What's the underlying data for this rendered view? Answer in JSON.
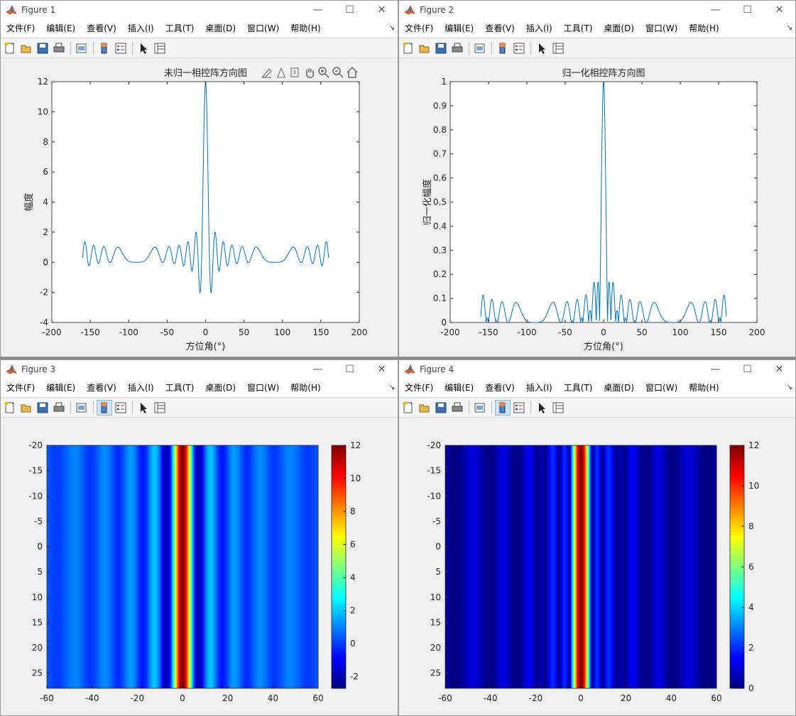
{
  "menu": [
    "文件(F)",
    "编辑(E)",
    "查看(V)",
    "插入(I)",
    "工具(T)",
    "桌面(D)",
    "窗口(W)",
    "帮助(H)"
  ],
  "menu_overflow": "↘",
  "window_controls": {
    "minimize": "—",
    "maximize": "☐",
    "close": "✕"
  },
  "toolbar_icons": [
    "new-figure-icon",
    "open-file-icon",
    "save-icon",
    "print-icon",
    "print-preview-icon",
    "colorbar-icon",
    "legend-icon",
    "pointer-icon",
    "property-inspector-icon"
  ],
  "axes_toolbar_icons": [
    "brush-icon",
    "data-tips-icon",
    "export-icon",
    "pan-icon",
    "zoom-in-icon",
    "zoom-out-icon",
    "home-icon"
  ],
  "colors": {
    "line": "#0072BD",
    "window_bg": "#f0f0f0",
    "axes_bg": "#ffffff"
  },
  "figures": [
    {
      "title": "Figure 1"
    },
    {
      "title": "Figure 2"
    },
    {
      "title": "Figure 3"
    },
    {
      "title": "Figure 4"
    }
  ],
  "chart_data": [
    {
      "type": "line",
      "title": "未归一相控阵方向图",
      "xlabel": "方位角(°)",
      "ylabel": "幅度",
      "xlim": [
        -200,
        200
      ],
      "ylim": [
        -4,
        12
      ],
      "xticks": [
        "-200",
        "-150",
        "-100",
        "-50",
        "0",
        "50",
        "100",
        "150",
        "200"
      ],
      "yticks": [
        "-4",
        "-2",
        "0",
        "2",
        "4",
        "6",
        "8",
        "10",
        "12"
      ],
      "x_range": [
        -160,
        160
      ],
      "series": [
        {
          "values_desc": "array factor sum over 12 elements, peak 12 at 0°"
        }
      ],
      "n_elements": 12,
      "grid": false
    },
    {
      "type": "line",
      "title": "归一化相控阵方向图",
      "xlabel": "方位角(°)",
      "ylabel": "归一化幅度",
      "xlim": [
        -200,
        200
      ],
      "ylim": [
        0,
        1
      ],
      "xticks": [
        "-200",
        "-150",
        "-100",
        "-50",
        "0",
        "50",
        "100",
        "150",
        "200"
      ],
      "yticks": [
        "0",
        "0.1",
        "0.2",
        "0.3",
        "0.4",
        "0.5",
        "0.6",
        "0.7",
        "0.8",
        "0.9",
        "1"
      ],
      "x_range": [
        -160,
        160
      ],
      "n_elements": 12,
      "grid": false
    },
    {
      "type": "heatmap",
      "xlim": [
        -60,
        60
      ],
      "ylim": [
        -20,
        28
      ],
      "xticks": [
        "-60",
        "-40",
        "-20",
        "0",
        "20",
        "40",
        "60"
      ],
      "yticks": [
        "-20",
        "-15",
        "-10",
        "-5",
        "0",
        "5",
        "10",
        "15",
        "20",
        "25"
      ],
      "colorbar_ticks": [
        "-2",
        "0",
        "2",
        "4",
        "6",
        "8",
        "10",
        "12"
      ],
      "clim": [
        -2.7,
        12
      ],
      "colormap": "jet",
      "n_elements": 12,
      "mode": "signed"
    },
    {
      "type": "heatmap",
      "xlim": [
        -60,
        60
      ],
      "ylim": [
        -20,
        28
      ],
      "xticks": [
        "-60",
        "-40",
        "-20",
        "0",
        "20",
        "40",
        "60"
      ],
      "yticks": [
        "-20",
        "-15",
        "-10",
        "-5",
        "0",
        "5",
        "10",
        "15",
        "20",
        "25"
      ],
      "colorbar_ticks": [
        "0",
        "2",
        "4",
        "6",
        "8",
        "10",
        "12"
      ],
      "clim": [
        0,
        12
      ],
      "colormap": "jet",
      "n_elements": 12,
      "mode": "abs"
    }
  ]
}
